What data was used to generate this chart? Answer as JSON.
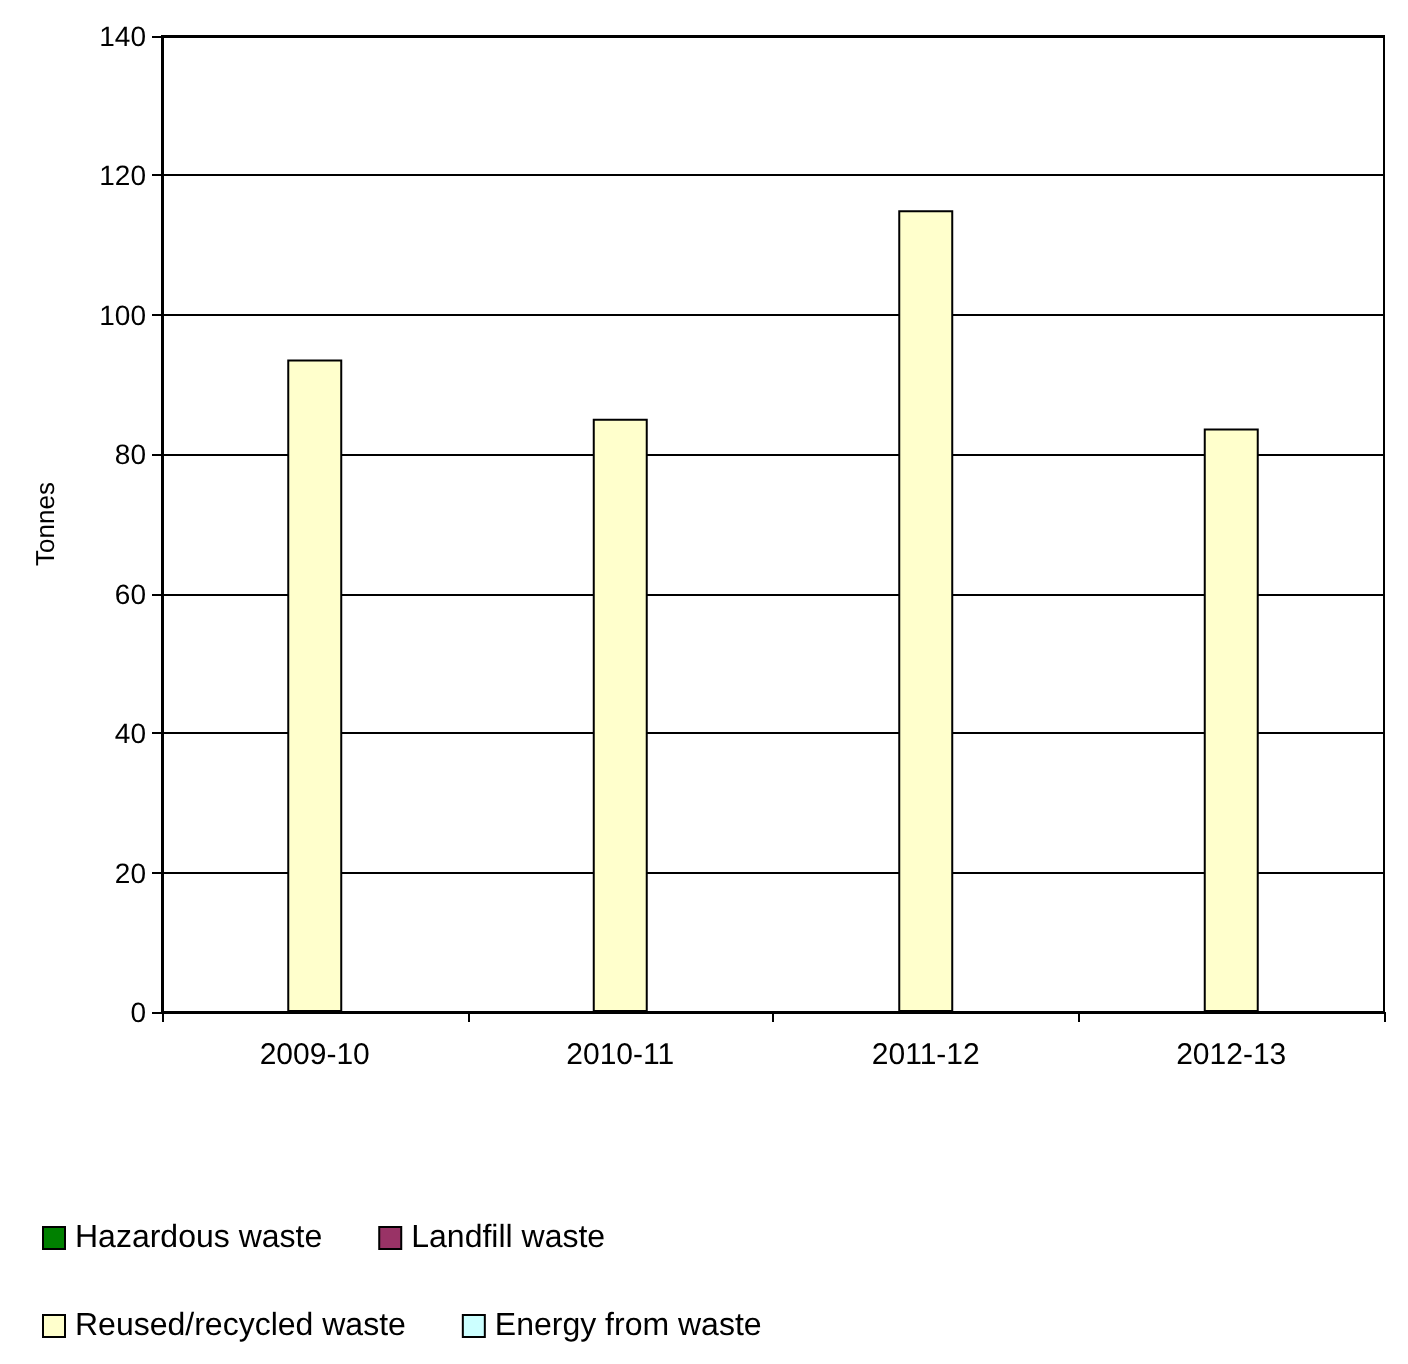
{
  "chart_data": {
    "type": "bar",
    "stacked": true,
    "ylabel": "Tonnes",
    "categories": [
      "2009-10",
      "2010-11",
      "2011-12",
      "2012-13"
    ],
    "series": [
      {
        "name": "Hazardous waste",
        "color": "#008000",
        "values": [
          null,
          null,
          null,
          null
        ]
      },
      {
        "name": "Landfill waste",
        "color": "#993366",
        "values": [
          null,
          null,
          null,
          null
        ]
      },
      {
        "name": "Reused/recycled waste",
        "color": "#ffffcc",
        "values": [
          93.6,
          85.1,
          115,
          83.7
        ]
      },
      {
        "name": "Energy from waste",
        "color": "#ccffff",
        "values": [
          null,
          null,
          null,
          null
        ]
      }
    ],
    "ylim": [
      0,
      140
    ],
    "yticks": [
      0,
      20,
      40,
      60,
      80,
      100,
      120,
      140
    ],
    "grid": "y",
    "legend": "bottom"
  }
}
